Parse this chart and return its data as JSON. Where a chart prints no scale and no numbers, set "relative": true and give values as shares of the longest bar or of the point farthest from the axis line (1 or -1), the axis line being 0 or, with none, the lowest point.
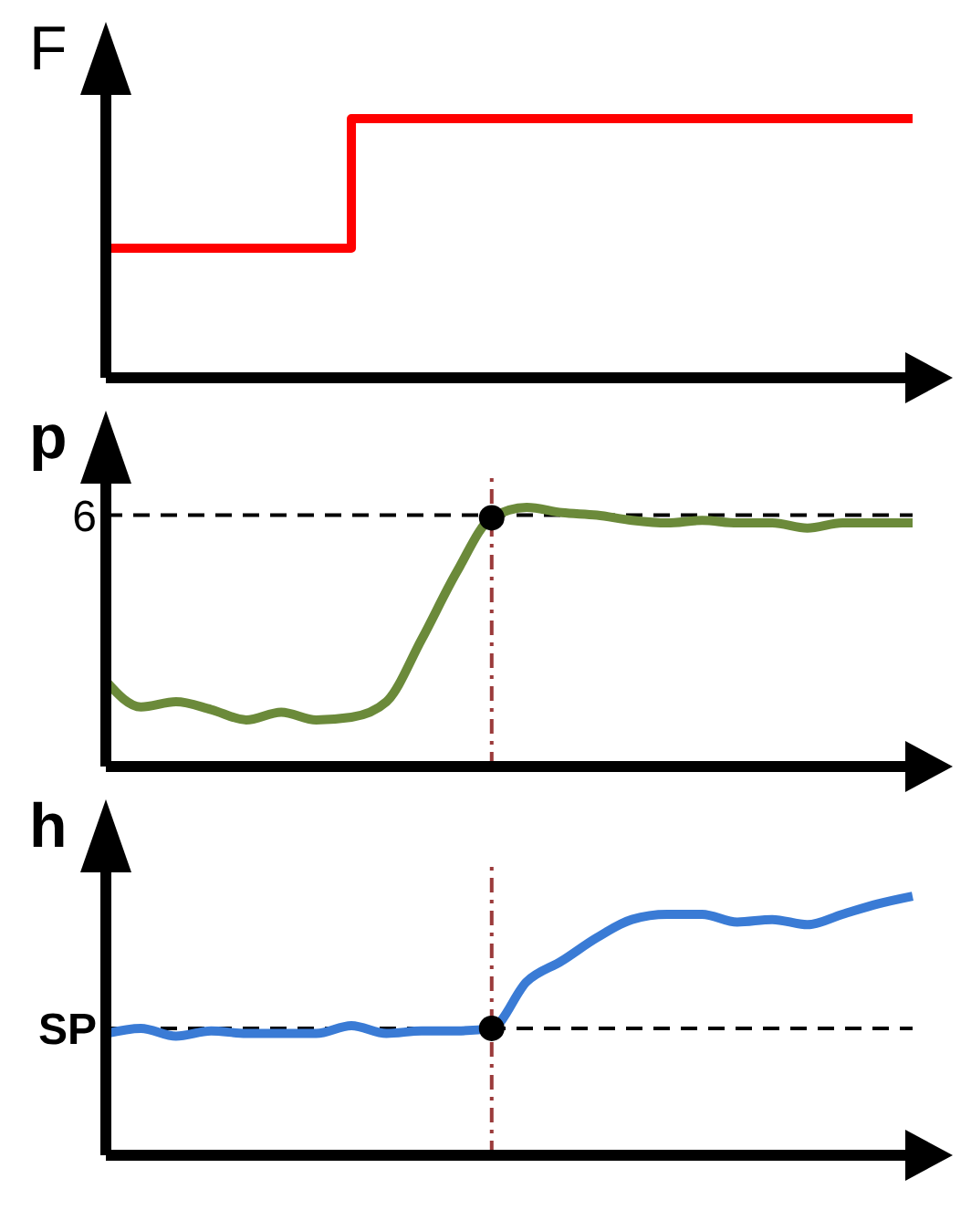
{
  "chart_data": [
    {
      "type": "step",
      "ylabel": "F",
      "relative": true,
      "categories": [
        null,
        null,
        null,
        null,
        null,
        null,
        null,
        null,
        null,
        null,
        null,
        null,
        null,
        null,
        null,
        null,
        null,
        null,
        null,
        null,
        null,
        null,
        null,
        null
      ],
      "series": [
        {
          "color": "#ff0000",
          "values": [
            0.5,
            0.5,
            0.5,
            0.5,
            0.5,
            0.5,
            0.5,
            1,
            1,
            1,
            1,
            1,
            1,
            1,
            1,
            1,
            1,
            1,
            1,
            1,
            1,
            1,
            1,
            1
          ]
        }
      ]
    },
    {
      "type": "line",
      "ylabel": "p",
      "relative": true,
      "annotations": [
        "6"
      ],
      "categories": [
        null,
        null,
        null,
        null,
        null,
        null,
        null,
        null,
        null,
        null,
        null,
        null,
        null,
        null,
        null,
        null,
        null,
        null,
        null,
        null,
        null,
        null,
        null,
        null
      ],
      "series": [
        {
          "color": "#6b8a3a",
          "values": [
            0.33,
            0.23,
            0.25,
            0.22,
            0.18,
            0.21,
            0.18,
            0.19,
            0.25,
            0.49,
            0.75,
            0.96,
            1,
            0.98,
            0.97,
            0.95,
            0.94,
            0.95,
            0.94,
            0.94,
            0.92,
            0.94,
            0.94,
            0.94
          ]
        },
        {
          "type": "scatter",
          "color": "#000000",
          "values": [
            null,
            null,
            null,
            null,
            null,
            null,
            null,
            null,
            null,
            null,
            null,
            0.96,
            null,
            null,
            null,
            null,
            null,
            null,
            null,
            null,
            null,
            null,
            null,
            null
          ]
        }
      ],
      "ref_lines": [
        {
          "axis": "y",
          "value": 0.97,
          "label": null,
          "color": "#000000",
          "line_style": "dashed"
        }
      ]
    },
    {
      "type": "line",
      "ylabel": "h",
      "relative": true,
      "categories": [
        null,
        null,
        null,
        null,
        null,
        null,
        null,
        null,
        null,
        null,
        null,
        null,
        null,
        null,
        null,
        null,
        null,
        null,
        null,
        null,
        null,
        null,
        null,
        null
      ],
      "series": [
        {
          "color": "#3a7bd5",
          "values": [
            0.47,
            0.49,
            0.46,
            0.48,
            0.47,
            0.47,
            0.47,
            0.5,
            0.47,
            0.48,
            0.48,
            0.49,
            0.67,
            0.75,
            0.84,
            0.91,
            0.93,
            0.93,
            0.9,
            0.91,
            0.89,
            0.93,
            0.97,
            1
          ]
        },
        {
          "type": "scatter",
          "color": "#000000",
          "values": [
            null,
            null,
            null,
            null,
            null,
            null,
            null,
            null,
            null,
            null,
            null,
            0.49,
            null,
            null,
            null,
            null,
            null,
            null,
            null,
            null,
            null,
            null,
            null,
            null
          ]
        }
      ],
      "ref_lines": [
        {
          "axis": "y",
          "value": 0.49,
          "label": "SP",
          "color": "#000000",
          "line_style": "dashed"
        }
      ]
    }
  ]
}
